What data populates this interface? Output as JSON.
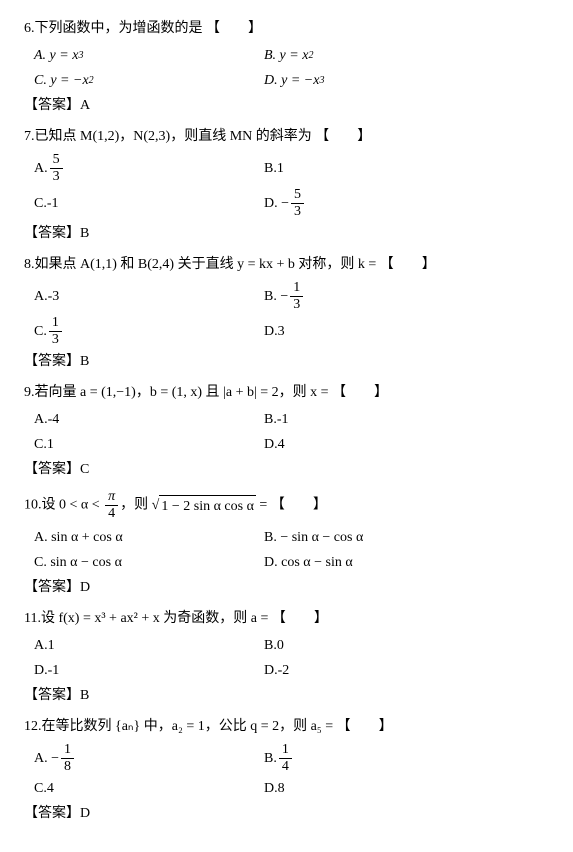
{
  "q6": {
    "stem_pre": "6.下列函数中，为增函数的是",
    "A_lhs": "A. y = x",
    "A_sup": "3",
    "B_lhs": "B. y = x",
    "B_sup": "2",
    "C_lhs": "C. y = −x",
    "C_sup": "2",
    "D_lhs": "D. y = −x",
    "D_sup": "3",
    "ans": "【答案】A"
  },
  "q7": {
    "stem": "7.已知点 M(1,2)，N(2,3)，则直线 MN 的斜率为",
    "A_num": "5",
    "A_den": "3",
    "B": "B.1",
    "C": "C.-1",
    "D_num": "5",
    "D_den": "3",
    "ans": "【答案】B"
  },
  "q8": {
    "stem": "8.如果点 A(1,1) 和 B(2,4) 关于直线 y = kx + b 对称，则 k =",
    "A": "A.-3",
    "B_num": "1",
    "B_den": "3",
    "C_num": "1",
    "C_den": "3",
    "D": "D.3",
    "ans": "【答案】B"
  },
  "q9": {
    "stem": "9.若向量 a = (1,−1)，b = (1, x) 且 |a + b| = 2，则 x =",
    "A": "A.-4",
    "B": "B.-1",
    "C": "C.1",
    "D": "D.4",
    "ans": "【答案】C"
  },
  "q10": {
    "stem_pre": "10.设 0 < α < ",
    "pi": "π",
    "four": "4",
    "stem_post": "，则 ",
    "sqrt_body": "1 − 2 sin α cos α",
    "eq": " =",
    "A": "A. sin α + cos α",
    "B": "B. − sin α − cos α",
    "C": "C. sin α − cos α",
    "D": "D. cos α − sin α",
    "ans": "【答案】D"
  },
  "q11": {
    "stem": "11.设 f(x) = x³ + ax² + x 为奇函数，则 a =",
    "A": "A.1",
    "B": "B.0",
    "C": "D.-1",
    "D": "D.-2",
    "ans": "【答案】B"
  },
  "q12": {
    "stem": "12.在等比数列 {aₙ} 中，a₂ = 1，公比 q = 2，则 a₅ =",
    "A_num": "1",
    "A_den": "8",
    "B_num": "1",
    "B_den": "4",
    "C": "C.4",
    "D": "D.8",
    "ans": "【答案】D"
  },
  "blank": "【　　】"
}
